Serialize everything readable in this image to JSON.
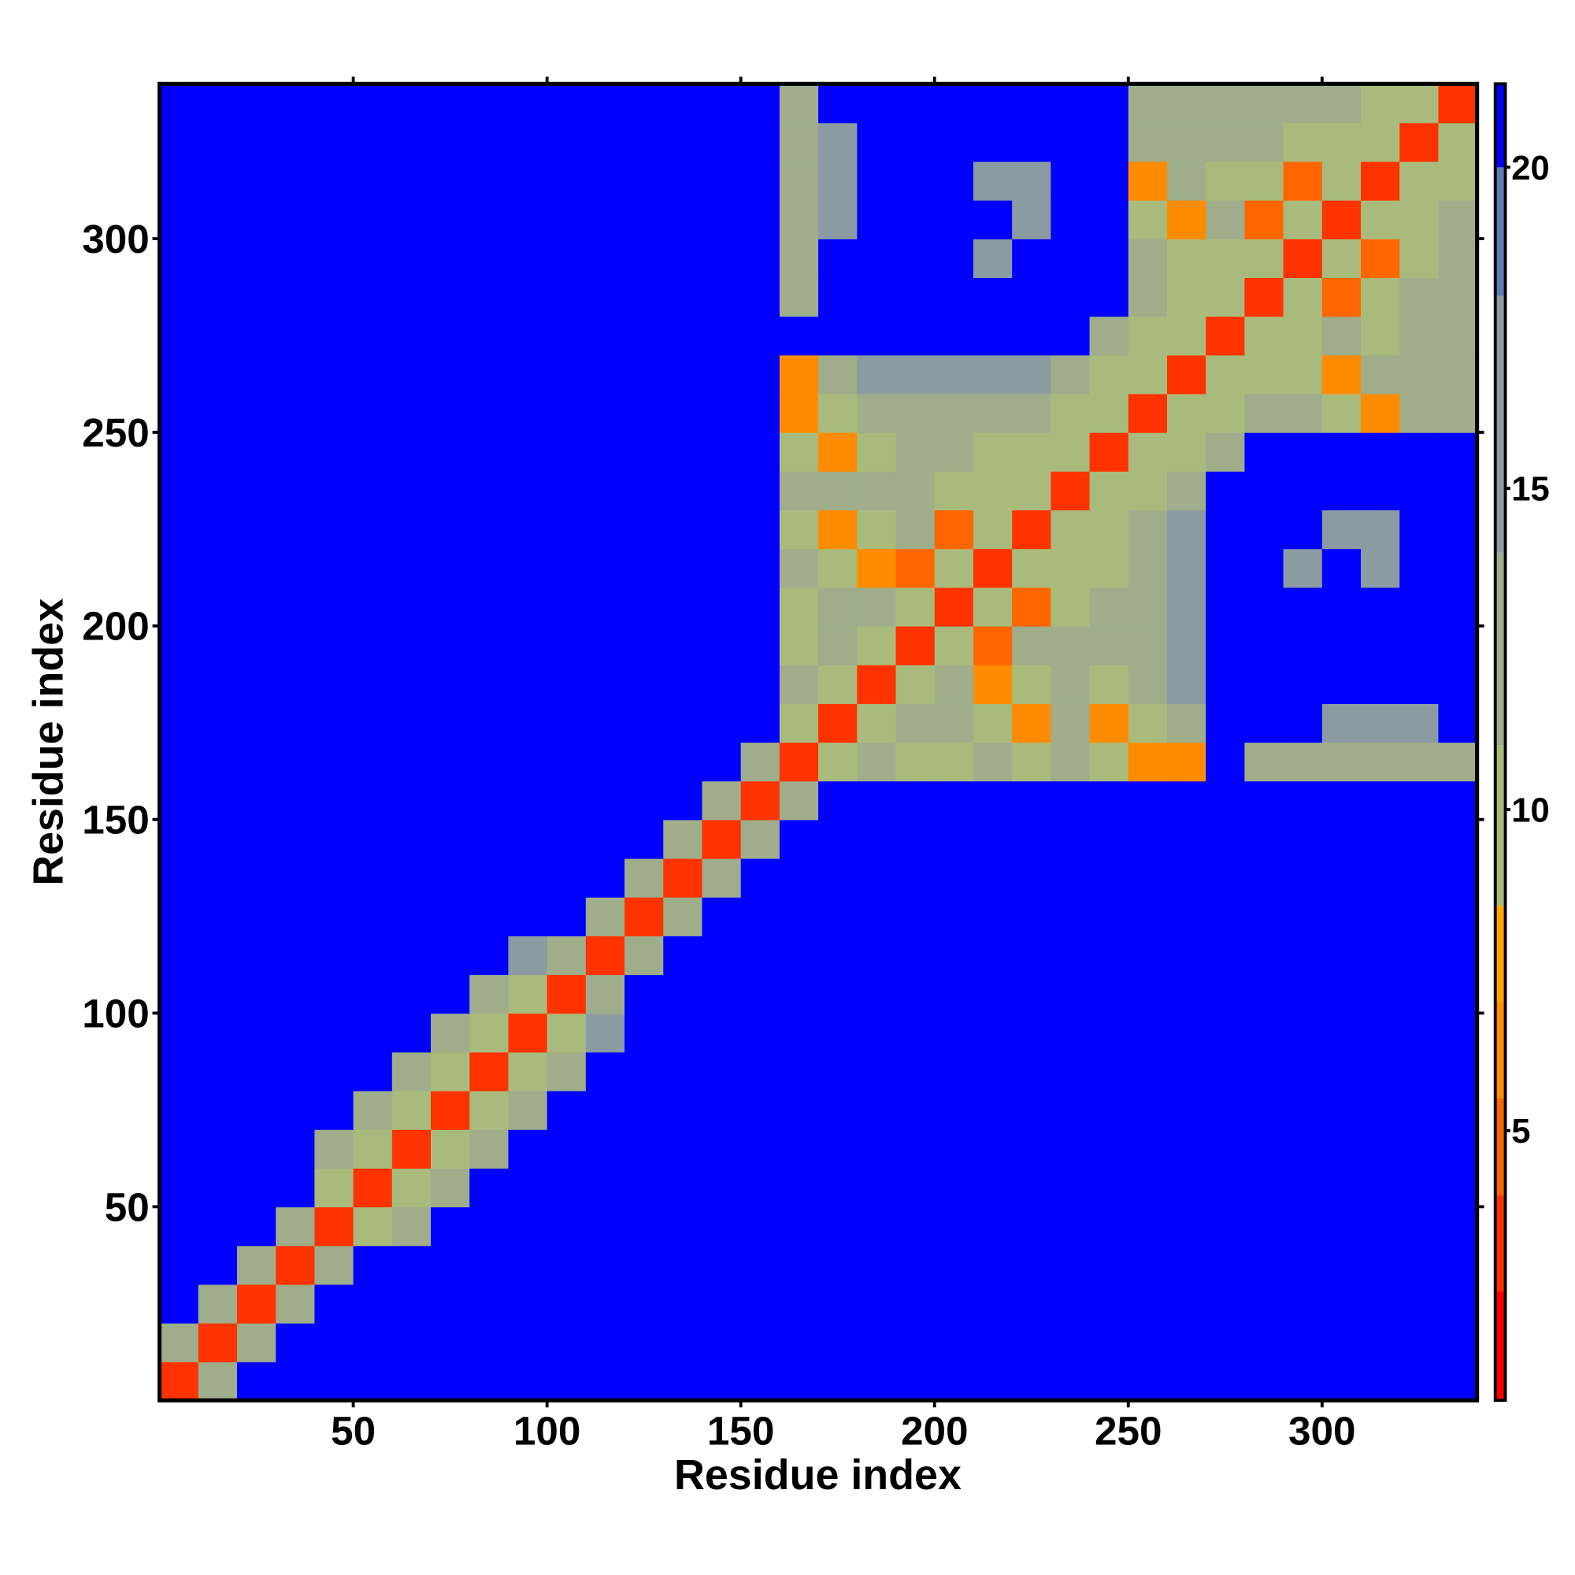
{
  "chart_data": {
    "type": "heatmap",
    "x_label": "Residue index",
    "y_label": "Residue index",
    "xlim": [
      0,
      340
    ],
    "ylim": [
      0,
      340
    ],
    "xticks": [
      50,
      100,
      150,
      200,
      250,
      300
    ],
    "yticks": [
      50,
      100,
      150,
      200,
      250,
      300
    ],
    "clim": [
      0.8,
      21.3
    ],
    "cticks": [
      5,
      10,
      15,
      20
    ],
    "colorscale": [
      [
        2.5,
        "#ff0000"
      ],
      [
        4,
        "#ff3300"
      ],
      [
        5.5,
        "#ff6600"
      ],
      [
        7,
        "#ff8c00"
      ],
      [
        8.5,
        "#ffa500"
      ],
      [
        11,
        "#a9bb7c"
      ],
      [
        14,
        "#9fad8a"
      ],
      [
        18,
        "#8a9ba2"
      ],
      [
        20,
        "#5d7db3"
      ],
      [
        21.3,
        "#0000ff"
      ]
    ],
    "values": [
      [
        3,
        12,
        21,
        21,
        21,
        21,
        21,
        21,
        21,
        21,
        21,
        21,
        21,
        21,
        21,
        21,
        21,
        21,
        21,
        21,
        21,
        21,
        21,
        21,
        21,
        21,
        21,
        21,
        21,
        21,
        21,
        21,
        21,
        21
      ],
      [
        12,
        3,
        12,
        21,
        21,
        21,
        21,
        21,
        21,
        21,
        21,
        21,
        21,
        21,
        21,
        21,
        21,
        21,
        21,
        21,
        21,
        21,
        21,
        21,
        21,
        21,
        21,
        21,
        21,
        21,
        21,
        21,
        21,
        21
      ],
      [
        21,
        12,
        3,
        12,
        21,
        21,
        21,
        21,
        21,
        21,
        21,
        21,
        21,
        21,
        21,
        21,
        21,
        21,
        21,
        21,
        21,
        21,
        21,
        21,
        21,
        21,
        21,
        21,
        21,
        21,
        21,
        21,
        21,
        21
      ],
      [
        21,
        21,
        12,
        3,
        12,
        21,
        21,
        21,
        21,
        21,
        21,
        21,
        21,
        21,
        21,
        21,
        21,
        21,
        21,
        21,
        21,
        21,
        21,
        21,
        21,
        21,
        21,
        21,
        21,
        21,
        21,
        21,
        21,
        21
      ],
      [
        21,
        21,
        21,
        12,
        3,
        9,
        14,
        21,
        21,
        21,
        21,
        21,
        21,
        21,
        21,
        21,
        21,
        21,
        21,
        21,
        21,
        21,
        21,
        21,
        21,
        21,
        21,
        21,
        21,
        21,
        21,
        21,
        21,
        21
      ],
      [
        21,
        21,
        21,
        21,
        9,
        3,
        9,
        14,
        21,
        21,
        21,
        21,
        21,
        21,
        21,
        21,
        21,
        21,
        21,
        21,
        21,
        21,
        21,
        21,
        21,
        21,
        21,
        21,
        21,
        21,
        21,
        21,
        21,
        21
      ],
      [
        21,
        21,
        21,
        21,
        14,
        9,
        3,
        9,
        14,
        21,
        21,
        21,
        21,
        21,
        21,
        21,
        21,
        21,
        21,
        21,
        21,
        21,
        21,
        21,
        21,
        21,
        21,
        21,
        21,
        21,
        21,
        21,
        21,
        21
      ],
      [
        21,
        21,
        21,
        21,
        21,
        14,
        9,
        3,
        9,
        14,
        21,
        21,
        21,
        21,
        21,
        21,
        21,
        21,
        21,
        21,
        21,
        21,
        21,
        21,
        21,
        21,
        21,
        21,
        21,
        21,
        21,
        21,
        21,
        21
      ],
      [
        21,
        21,
        21,
        21,
        21,
        21,
        14,
        9,
        3,
        9,
        14,
        21,
        21,
        21,
        21,
        21,
        21,
        21,
        21,
        21,
        21,
        21,
        21,
        21,
        21,
        21,
        21,
        21,
        21,
        21,
        21,
        21,
        21,
        21
      ],
      [
        21,
        21,
        21,
        21,
        21,
        21,
        21,
        14,
        9,
        3,
        9,
        15,
        21,
        21,
        21,
        21,
        21,
        21,
        21,
        21,
        21,
        21,
        21,
        21,
        21,
        21,
        21,
        21,
        21,
        21,
        21,
        21,
        21,
        21
      ],
      [
        21,
        21,
        21,
        21,
        21,
        21,
        21,
        21,
        14,
        9,
        3,
        13,
        21,
        21,
        21,
        21,
        21,
        21,
        21,
        21,
        21,
        21,
        21,
        21,
        21,
        21,
        21,
        21,
        21,
        21,
        21,
        21,
        21,
        21
      ],
      [
        21,
        21,
        21,
        21,
        21,
        21,
        21,
        21,
        21,
        15,
        13,
        3,
        13,
        21,
        21,
        21,
        21,
        21,
        21,
        21,
        21,
        21,
        21,
        21,
        21,
        21,
        21,
        21,
        21,
        21,
        21,
        21,
        21,
        21
      ],
      [
        21,
        21,
        21,
        21,
        21,
        21,
        21,
        21,
        21,
        21,
        21,
        13,
        3,
        13,
        21,
        21,
        21,
        21,
        21,
        21,
        21,
        21,
        21,
        21,
        21,
        21,
        21,
        21,
        21,
        21,
        21,
        21,
        21,
        21
      ],
      [
        21,
        21,
        21,
        21,
        21,
        21,
        21,
        21,
        21,
        21,
        21,
        21,
        13,
        3,
        13,
        21,
        21,
        21,
        21,
        21,
        21,
        21,
        21,
        21,
        21,
        21,
        21,
        21,
        21,
        21,
        21,
        21,
        21,
        21
      ],
      [
        21,
        21,
        21,
        21,
        21,
        21,
        21,
        21,
        21,
        21,
        21,
        21,
        21,
        13,
        3,
        13,
        21,
        21,
        21,
        21,
        21,
        21,
        21,
        21,
        21,
        21,
        21,
        21,
        21,
        21,
        21,
        21,
        21,
        21
      ],
      [
        21,
        21,
        21,
        21,
        21,
        21,
        21,
        21,
        21,
        21,
        21,
        21,
        21,
        21,
        13,
        3,
        12,
        21,
        21,
        21,
        21,
        21,
        21,
        21,
        21,
        21,
        21,
        21,
        21,
        21,
        21,
        21,
        21,
        21
      ],
      [
        21,
        21,
        21,
        21,
        21,
        21,
        21,
        21,
        21,
        21,
        21,
        21,
        21,
        21,
        21,
        12,
        3,
        10,
        12,
        11,
        11,
        12,
        11,
        13,
        11,
        6,
        7,
        21,
        14,
        14,
        14,
        14,
        14,
        14
      ],
      [
        21,
        21,
        21,
        21,
        21,
        21,
        21,
        21,
        21,
        21,
        21,
        21,
        21,
        21,
        21,
        21,
        10,
        3,
        10,
        12,
        12,
        11,
        6,
        12,
        7,
        11,
        14,
        21,
        21,
        21,
        16,
        15,
        16,
        21
      ],
      [
        21,
        21,
        21,
        21,
        21,
        21,
        21,
        21,
        21,
        21,
        21,
        21,
        21,
        21,
        21,
        21,
        12,
        10,
        3,
        10,
        12,
        6,
        11,
        12,
        11,
        12,
        15,
        21,
        21,
        21,
        21,
        21,
        21,
        21
      ],
      [
        21,
        21,
        21,
        21,
        21,
        21,
        21,
        21,
        21,
        21,
        21,
        21,
        21,
        21,
        21,
        21,
        11,
        12,
        10,
        3,
        10,
        5,
        12,
        12,
        12,
        13,
        16,
        21,
        21,
        21,
        21,
        21,
        21,
        21
      ],
      [
        21,
        21,
        21,
        21,
        21,
        21,
        21,
        21,
        21,
        21,
        21,
        21,
        21,
        21,
        21,
        21,
        11,
        12,
        12,
        10,
        3,
        10,
        5,
        11,
        12,
        12,
        16,
        21,
        21,
        21,
        21,
        21,
        21,
        21
      ],
      [
        21,
        21,
        21,
        21,
        21,
        21,
        21,
        21,
        21,
        21,
        21,
        21,
        21,
        21,
        21,
        21,
        12,
        11,
        6,
        5,
        10,
        3,
        10,
        10,
        11,
        13,
        17,
        21,
        21,
        17,
        21,
        17,
        21,
        21
      ],
      [
        21,
        21,
        21,
        21,
        21,
        21,
        21,
        21,
        21,
        21,
        21,
        21,
        21,
        21,
        21,
        21,
        11,
        6,
        11,
        12,
        5,
        10,
        3,
        10,
        10,
        14,
        18,
        21,
        21,
        21,
        16,
        15,
        21,
        21
      ],
      [
        21,
        21,
        21,
        21,
        21,
        21,
        21,
        21,
        21,
        21,
        21,
        21,
        21,
        21,
        21,
        21,
        13,
        12,
        12,
        12,
        11,
        10,
        10,
        3,
        10,
        11,
        14,
        21,
        21,
        21,
        21,
        21,
        21,
        21
      ],
      [
        21,
        21,
        21,
        21,
        21,
        21,
        21,
        21,
        21,
        21,
        21,
        21,
        21,
        21,
        21,
        21,
        11,
        7,
        11,
        12,
        12,
        11,
        10,
        10,
        3,
        10,
        10,
        13,
        21,
        21,
        21,
        21,
        21,
        21
      ],
      [
        21,
        21,
        21,
        21,
        21,
        21,
        21,
        21,
        21,
        21,
        21,
        21,
        21,
        21,
        21,
        21,
        6,
        11,
        12,
        13,
        12,
        13,
        14,
        11,
        10,
        3,
        10,
        11,
        12,
        12,
        11,
        6,
        12,
        13
      ],
      [
        21,
        21,
        21,
        21,
        21,
        21,
        21,
        21,
        21,
        21,
        21,
        21,
        21,
        21,
        21,
        21,
        7,
        14,
        15,
        16,
        16,
        17,
        18,
        14,
        10,
        10,
        3,
        10,
        11,
        11,
        6,
        12,
        12,
        13
      ],
      [
        21,
        21,
        21,
        21,
        21,
        21,
        21,
        21,
        21,
        21,
        21,
        21,
        21,
        21,
        21,
        21,
        21,
        21,
        21,
        21,
        21,
        21,
        21,
        21,
        13,
        11,
        10,
        3,
        10,
        11,
        12,
        11,
        12,
        12
      ],
      [
        21,
        21,
        21,
        21,
        21,
        21,
        21,
        21,
        21,
        21,
        21,
        21,
        21,
        21,
        21,
        21,
        14,
        21,
        21,
        21,
        21,
        21,
        21,
        21,
        21,
        12,
        11,
        10,
        3,
        10,
        5,
        11,
        12,
        12
      ],
      [
        21,
        21,
        21,
        21,
        21,
        21,
        21,
        21,
        21,
        21,
        21,
        21,
        21,
        21,
        21,
        21,
        14,
        21,
        21,
        21,
        21,
        17,
        21,
        21,
        21,
        12,
        11,
        11,
        10,
        3,
        10,
        5,
        11,
        12
      ],
      [
        21,
        21,
        21,
        21,
        21,
        21,
        21,
        21,
        21,
        21,
        21,
        21,
        21,
        21,
        21,
        21,
        14,
        16,
        21,
        21,
        21,
        21,
        16,
        21,
        21,
        11,
        6,
        12,
        5,
        10,
        3,
        10,
        10,
        12
      ],
      [
        21,
        21,
        21,
        21,
        21,
        21,
        21,
        21,
        21,
        21,
        21,
        21,
        21,
        21,
        21,
        21,
        14,
        15,
        21,
        21,
        21,
        17,
        15,
        21,
        21,
        6,
        12,
        11,
        11,
        5,
        10,
        3,
        10,
        10
      ],
      [
        21,
        21,
        21,
        21,
        21,
        21,
        21,
        21,
        21,
        21,
        21,
        21,
        21,
        21,
        21,
        21,
        14,
        16,
        21,
        21,
        21,
        21,
        21,
        21,
        21,
        12,
        12,
        12,
        12,
        11,
        10,
        10,
        3,
        10
      ],
      [
        21,
        21,
        21,
        21,
        21,
        21,
        21,
        21,
        21,
        21,
        21,
        21,
        21,
        21,
        21,
        21,
        14,
        21,
        21,
        21,
        21,
        21,
        21,
        21,
        21,
        13,
        13,
        12,
        12,
        12,
        12,
        10,
        10,
        3
      ]
    ]
  }
}
